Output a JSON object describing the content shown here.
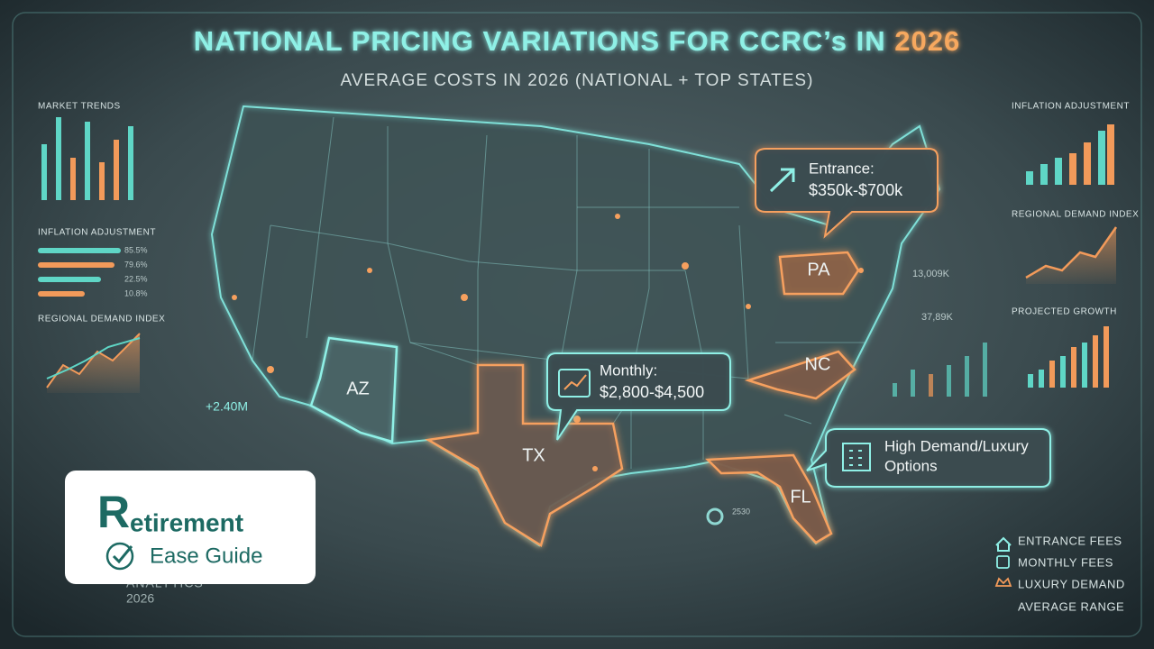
{
  "header": {
    "title": "NATIONAL PRICING VARIATIONS FOR CCRC’s IN",
    "title_year": "2026",
    "subtitle": "AVERAGE COSTS IN 2026 (NATIONAL + TOP STATES)"
  },
  "left_panels": {
    "market_trends": "MARKET TRENDS",
    "inflation": {
      "title": "INFLATION ADJUSTMENT",
      "rows": [
        "85.5%",
        "79.6%",
        "22.5%",
        "10.8%"
      ]
    },
    "demand": "REGIONAL DEMAND INDEX",
    "stat": "+2.40M"
  },
  "right_panels": {
    "inflation": "INFLATION ADJUSTMENT",
    "demand": "REGIONAL DEMAND INDEX",
    "growth": "PROJECTED GROWTH",
    "stats": [
      "13,009K",
      "37,89K"
    ]
  },
  "map": {
    "states": [
      "AZ",
      "TX",
      "PA",
      "NC",
      "FL"
    ],
    "stat": "2530"
  },
  "callouts": [
    {
      "title": "Entrance:",
      "value": "$350k-$700k"
    },
    {
      "title": "Monthly:",
      "value": "$2,800-$4,500"
    },
    {
      "title": "High Demand/Luxury",
      "value": "Options"
    }
  ],
  "legend": [
    "ENTRANCE FEES",
    "MONTHLY FEES",
    "LUXURY DEMAND",
    "AVERAGE RANGE"
  ],
  "logo": {
    "initial": "R",
    "word": "etirement",
    "tagline": "Ease Guide"
  },
  "footer": {
    "label": "ANALYTICS",
    "year": "2026"
  }
}
